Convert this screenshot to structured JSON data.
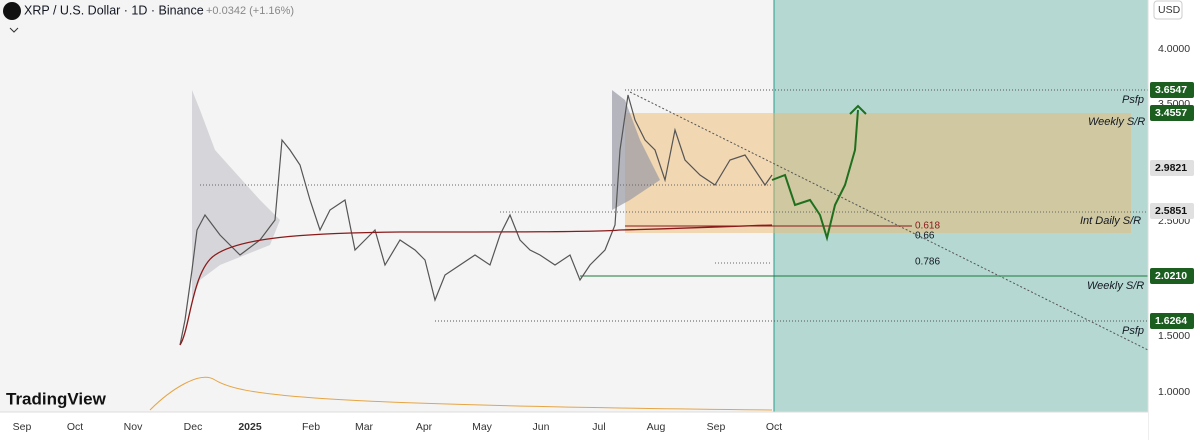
{
  "header": {
    "title": "XRP / U.S. Dollar · 1D · Binance",
    "change": "+0.0342 (+1.16%)"
  },
  "price_axis": {
    "currency": "USD",
    "ticks": [
      "4.0000",
      "3.5000",
      "2.5000",
      "1.5000",
      "1.0000"
    ],
    "markers": [
      "3.6547",
      "3.4557",
      "2.9821",
      "2.5851",
      "2.0210",
      "1.6264"
    ]
  },
  "time_axis": [
    "Sep",
    "Oct",
    "Nov",
    "Dec",
    "2025",
    "Feb",
    "Mar",
    "Apr",
    "May",
    "Jun",
    "Jul",
    "Aug",
    "Sep",
    "Oct"
  ],
  "annotations": [
    "Psfp",
    "Weekly S/R",
    "0.618",
    "0.66",
    "Int Daily S/R",
    "0.786",
    "Weekly S/R",
    "Psfp"
  ],
  "logo": "TradingView"
}
